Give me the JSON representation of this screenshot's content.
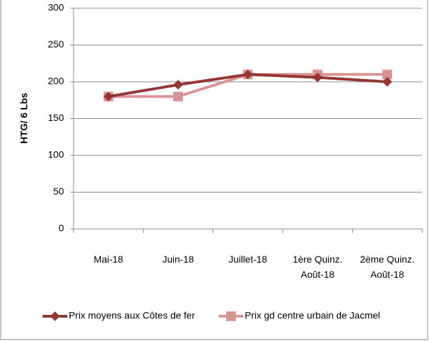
{
  "chart_data": {
    "type": "line",
    "y_label": "HTG/ 6 Lbs",
    "categories": [
      "Mai-18",
      "Juin-18",
      "Juillet-18",
      "1ère Quinz. Août-18",
      "2ème Quinz. Août-18"
    ],
    "series": [
      {
        "name": "Prix moyens aux Côtes de fer",
        "color": "#943634",
        "marker": "diamond",
        "values": [
          180,
          196,
          210,
          206,
          200
        ]
      },
      {
        "name": "Prix gd centre urbain de Jacmel",
        "color": "#d99594",
        "marker": "square",
        "values": [
          180,
          180,
          210,
          210,
          210
        ]
      }
    ],
    "ylim": [
      0,
      300
    ],
    "yticks": [
      0,
      50,
      100,
      150,
      200,
      250,
      300
    ],
    "grid": true,
    "legend": "bottom"
  }
}
